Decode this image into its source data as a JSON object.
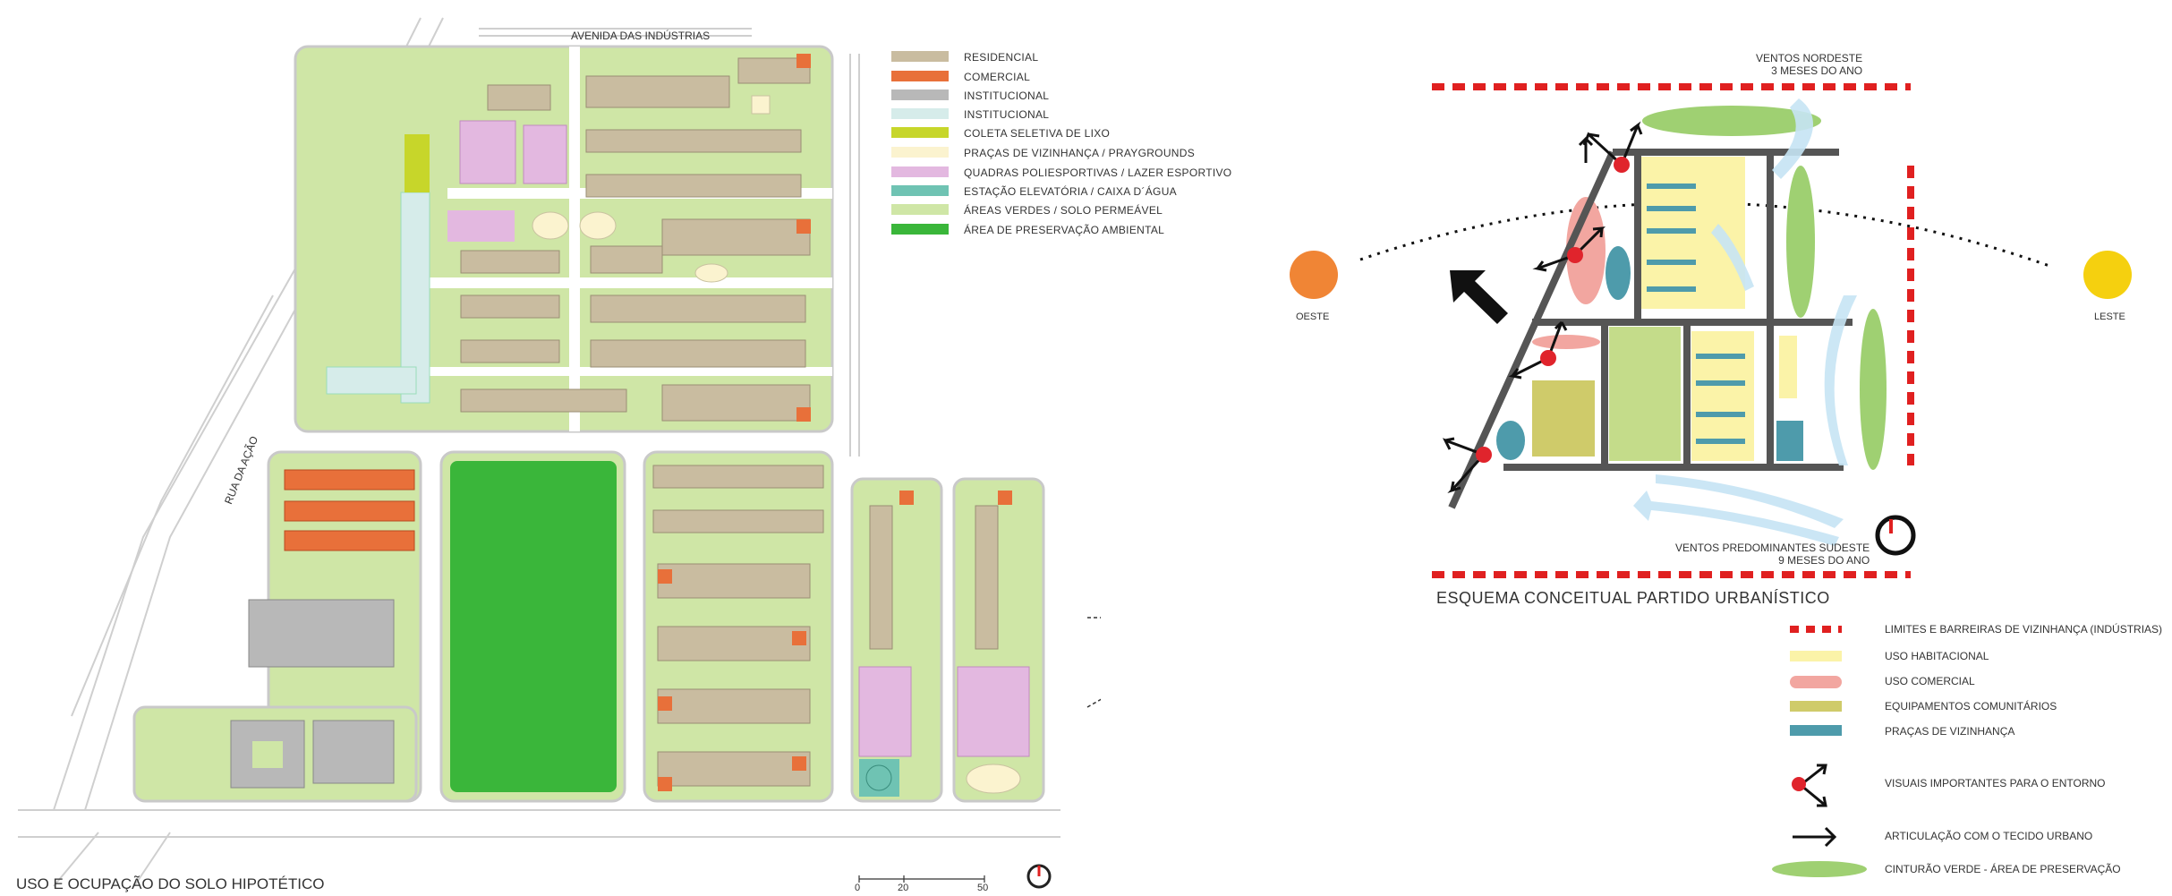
{
  "plan": {
    "street_top": "AVENIDA DAS INDÚSTRIAS",
    "street_side": "RUA DA AÇÃO",
    "title": "USO E OCUPAÇÃO DO SOLO HIPOTÉTICO",
    "scale": {
      "s0": "0",
      "s20": "20",
      "s50": "50"
    },
    "legend": [
      {
        "label": "RESIDENCIAL",
        "color": "#c9bca0"
      },
      {
        "label": "COMERCIAL",
        "color": "#e8703a"
      },
      {
        "label": "INSTITUCIONAL",
        "color": "#b8b8b8"
      },
      {
        "label": "INSTITUCIONAL",
        "color": "#d6ecea"
      },
      {
        "label": "COLETA SELETIVA DE LIXO",
        "color": "#c7d62a"
      },
      {
        "label": "PRAÇAS DE VIZINHANÇA / PRAYGROUNDS",
        "color": "#fbf3cf"
      },
      {
        "label": "QUADRAS POLIESPORTIVAS / LAZER ESPORTIVO",
        "color": "#e3b8e0"
      },
      {
        "label": "ESTAÇÃO ELEVATÓRIA / CAIXA D´ÁGUA",
        "color": "#6fc3b3"
      },
      {
        "label": "ÁREAS VERDES / SOLO PERMEÁVEL",
        "color": "#cfe6a6"
      },
      {
        "label": "ÁREA DE PRESERVAÇÃO AMBIENTAL",
        "color": "#3ab63a"
      }
    ]
  },
  "scheme": {
    "winds_ne_line1": "VENTOS NORDESTE",
    "winds_ne_line2": "3 MESES DO ANO",
    "winds_se_line1": "VENTOS PREDOMINANTES SUDESTE",
    "winds_se_line2": "9 MESES DO ANO",
    "west": "OESTE",
    "east": "LESTE",
    "title": "ESQUEMA CONCEITUAL PARTIDO URBANÍSTICO",
    "legend": [
      {
        "label": "LIMITES E BARREIRAS DE VIZINHANÇA (INDÚSTRIAS)",
        "color": "#e02020"
      },
      {
        "label": "USO HABITACIONAL",
        "color": "#fbf3a8"
      },
      {
        "label": "USO COMERCIAL",
        "color": "#f2a6a0"
      },
      {
        "label": "EQUIPAMENTOS COMUNITÁRIOS",
        "color": "#cfcb6a"
      },
      {
        "label": "PRAÇAS DE VIZINHANÇA",
        "color": "#4e9bab"
      },
      {
        "label": "VISUAIS IMPORTANTES PARA O ENTORNO",
        "color": "#e0242c"
      },
      {
        "label": "ARTICULAÇÃO COM O TECIDO URBANO",
        "color": "#111111"
      },
      {
        "label": "CINTURÃO VERDE - ÁREA DE PRESERVAÇÃO",
        "color": "#9fd072"
      }
    ]
  }
}
